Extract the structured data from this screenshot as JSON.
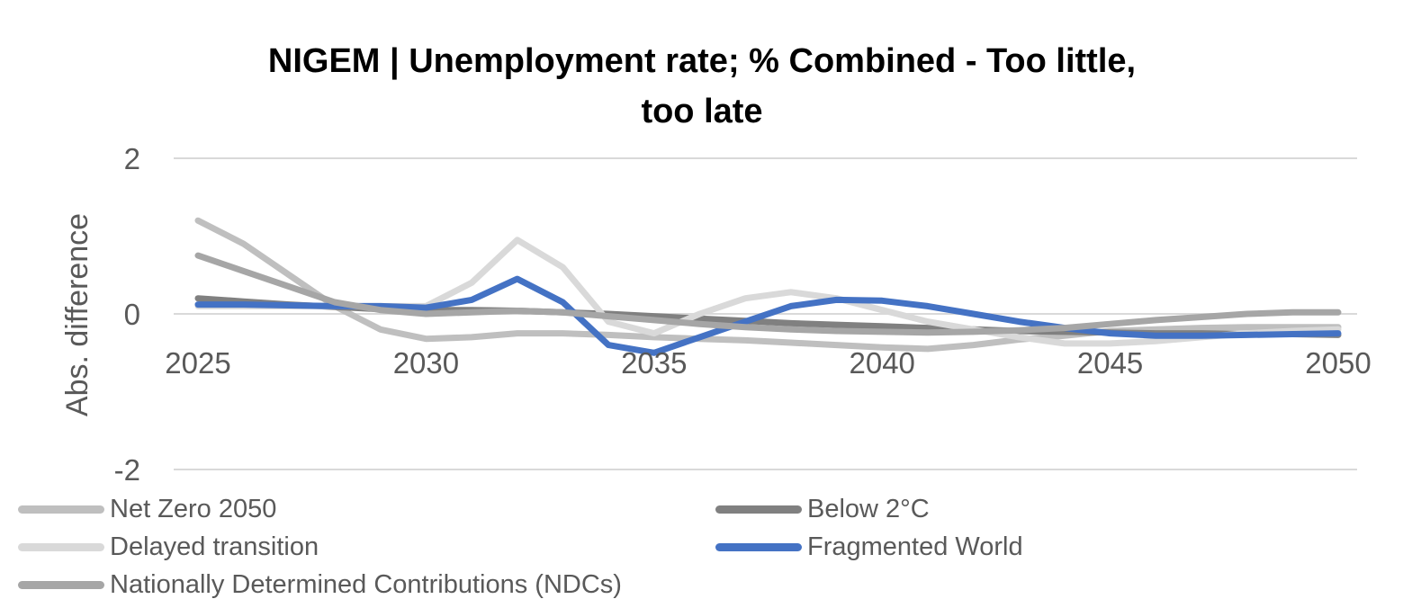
{
  "chart_data": {
    "type": "line",
    "title_lines": [
      "NIGEM | Unemployment rate; % Combined - Too little,",
      "too late"
    ],
    "ylabel": "Abs. difference",
    "xlabel": "",
    "xlim": [
      2025,
      2050
    ],
    "ylim": [
      -2,
      2
    ],
    "x_ticks": [
      "2025",
      "2030",
      "2035",
      "2040",
      "2045",
      "2050"
    ],
    "y_ticks": [
      "2",
      "0",
      "-2"
    ],
    "x": [
      2025,
      2026,
      2027,
      2028,
      2029,
      2030,
      2031,
      2032,
      2033,
      2034,
      2035,
      2036,
      2037,
      2038,
      2039,
      2040,
      2041,
      2042,
      2043,
      2044,
      2045,
      2046,
      2047,
      2048,
      2049,
      2050
    ],
    "grid": "horizontal",
    "legend_position": "bottom",
    "series": [
      {
        "name": "Net Zero 2050",
        "color": "#BFBFBF",
        "values": [
          1.2,
          0.9,
          0.5,
          0.1,
          -0.2,
          -0.32,
          -0.3,
          -0.25,
          -0.25,
          -0.27,
          -0.3,
          -0.32,
          -0.34,
          -0.37,
          -0.4,
          -0.43,
          -0.45,
          -0.4,
          -0.33,
          -0.28,
          -0.22,
          -0.2,
          -0.18,
          -0.17,
          -0.17,
          -0.17
        ]
      },
      {
        "name": "Below 2°C",
        "color": "#808080",
        "values": [
          0.2,
          0.16,
          0.12,
          0.09,
          0.06,
          0.05,
          0.05,
          0.04,
          0.02,
          0.0,
          -0.03,
          -0.06,
          -0.09,
          -0.12,
          -0.14,
          -0.16,
          -0.18,
          -0.2,
          -0.22,
          -0.23,
          -0.24,
          -0.25,
          -0.25,
          -0.26,
          -0.26,
          -0.27
        ]
      },
      {
        "name": "Delayed transition",
        "color": "#D9D9D9",
        "values": [
          0.1,
          0.1,
          0.1,
          0.1,
          0.1,
          0.1,
          0.4,
          0.95,
          0.6,
          -0.1,
          -0.25,
          0.0,
          0.2,
          0.28,
          0.2,
          0.05,
          -0.1,
          -0.2,
          -0.3,
          -0.38,
          -0.38,
          -0.35,
          -0.3,
          -0.25,
          -0.22,
          -0.2
        ]
      },
      {
        "name": "Fragmented World",
        "color": "#4472C4",
        "values": [
          0.12,
          0.12,
          0.11,
          0.1,
          0.1,
          0.08,
          0.18,
          0.45,
          0.15,
          -0.4,
          -0.5,
          -0.3,
          -0.1,
          0.1,
          0.18,
          0.17,
          0.1,
          0.0,
          -0.1,
          -0.18,
          -0.25,
          -0.28,
          -0.28,
          -0.27,
          -0.26,
          -0.25
        ]
      },
      {
        "name": "Nationally Determined Contributions (NDCs)",
        "color": "#A6A6A6",
        "values": [
          0.75,
          0.55,
          0.35,
          0.15,
          0.05,
          0.0,
          0.02,
          0.04,
          0.02,
          -0.03,
          -0.08,
          -0.13,
          -0.17,
          -0.2,
          -0.22,
          -0.23,
          -0.24,
          -0.23,
          -0.21,
          -0.18,
          -0.13,
          -0.08,
          -0.04,
          0.0,
          0.02,
          0.02
        ]
      }
    ]
  }
}
